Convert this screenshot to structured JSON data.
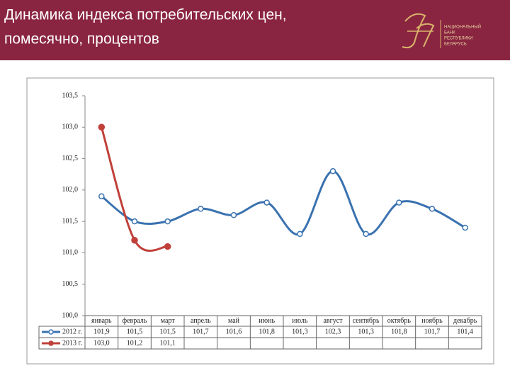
{
  "header": {
    "title": [
      "Динамика индекса потребительских цен,",
      "помесячно, процентов"
    ],
    "logo_text": [
      "НАЦИОНАЛЬНЫЙ",
      "БАНК",
      "РЕСПУБЛИКИ",
      "БЕЛАРУСЬ"
    ]
  },
  "chart_data": {
    "type": "line",
    "categories": [
      "январь",
      "февраль",
      "март",
      "апрель",
      "май",
      "июнь",
      "июль",
      "август",
      "сентябрь",
      "октябрь",
      "ноябрь",
      "декабрь"
    ],
    "series": [
      {
        "name": "2012 г.",
        "color": "#3a72b0",
        "values": [
          101.9,
          101.5,
          101.5,
          101.7,
          101.6,
          101.8,
          101.3,
          102.3,
          101.3,
          101.8,
          101.7,
          101.4
        ],
        "value_labels": [
          "101,9",
          "101,5",
          "101,5",
          "101,7",
          "101,6",
          "101,8",
          "101,3",
          "102,3",
          "101,3",
          "101,8",
          "101,7",
          "101,4"
        ]
      },
      {
        "name": "2013 г.",
        "color": "#c0403a",
        "values": [
          103.0,
          101.2,
          101.1,
          null,
          null,
          null,
          null,
          null,
          null,
          null,
          null,
          null
        ],
        "value_labels": [
          "103,0",
          "101,2",
          "101,1",
          null,
          null,
          null,
          null,
          null,
          null,
          null,
          null,
          null
        ]
      }
    ],
    "ylim": [
      100,
      103.5
    ],
    "yticks": [
      {
        "value": 100,
        "label": "100,0"
      },
      {
        "value": 100.5,
        "label": "100,5"
      },
      {
        "value": 101,
        "label": "101,0"
      },
      {
        "value": 101.5,
        "label": "101,5"
      },
      {
        "value": 102,
        "label": "102,0"
      },
      {
        "value": 102.5,
        "label": "102,5"
      },
      {
        "value": 103,
        "label": "103,0"
      },
      {
        "value": 103.5,
        "label": "103,5"
      }
    ],
    "smooth": true
  }
}
